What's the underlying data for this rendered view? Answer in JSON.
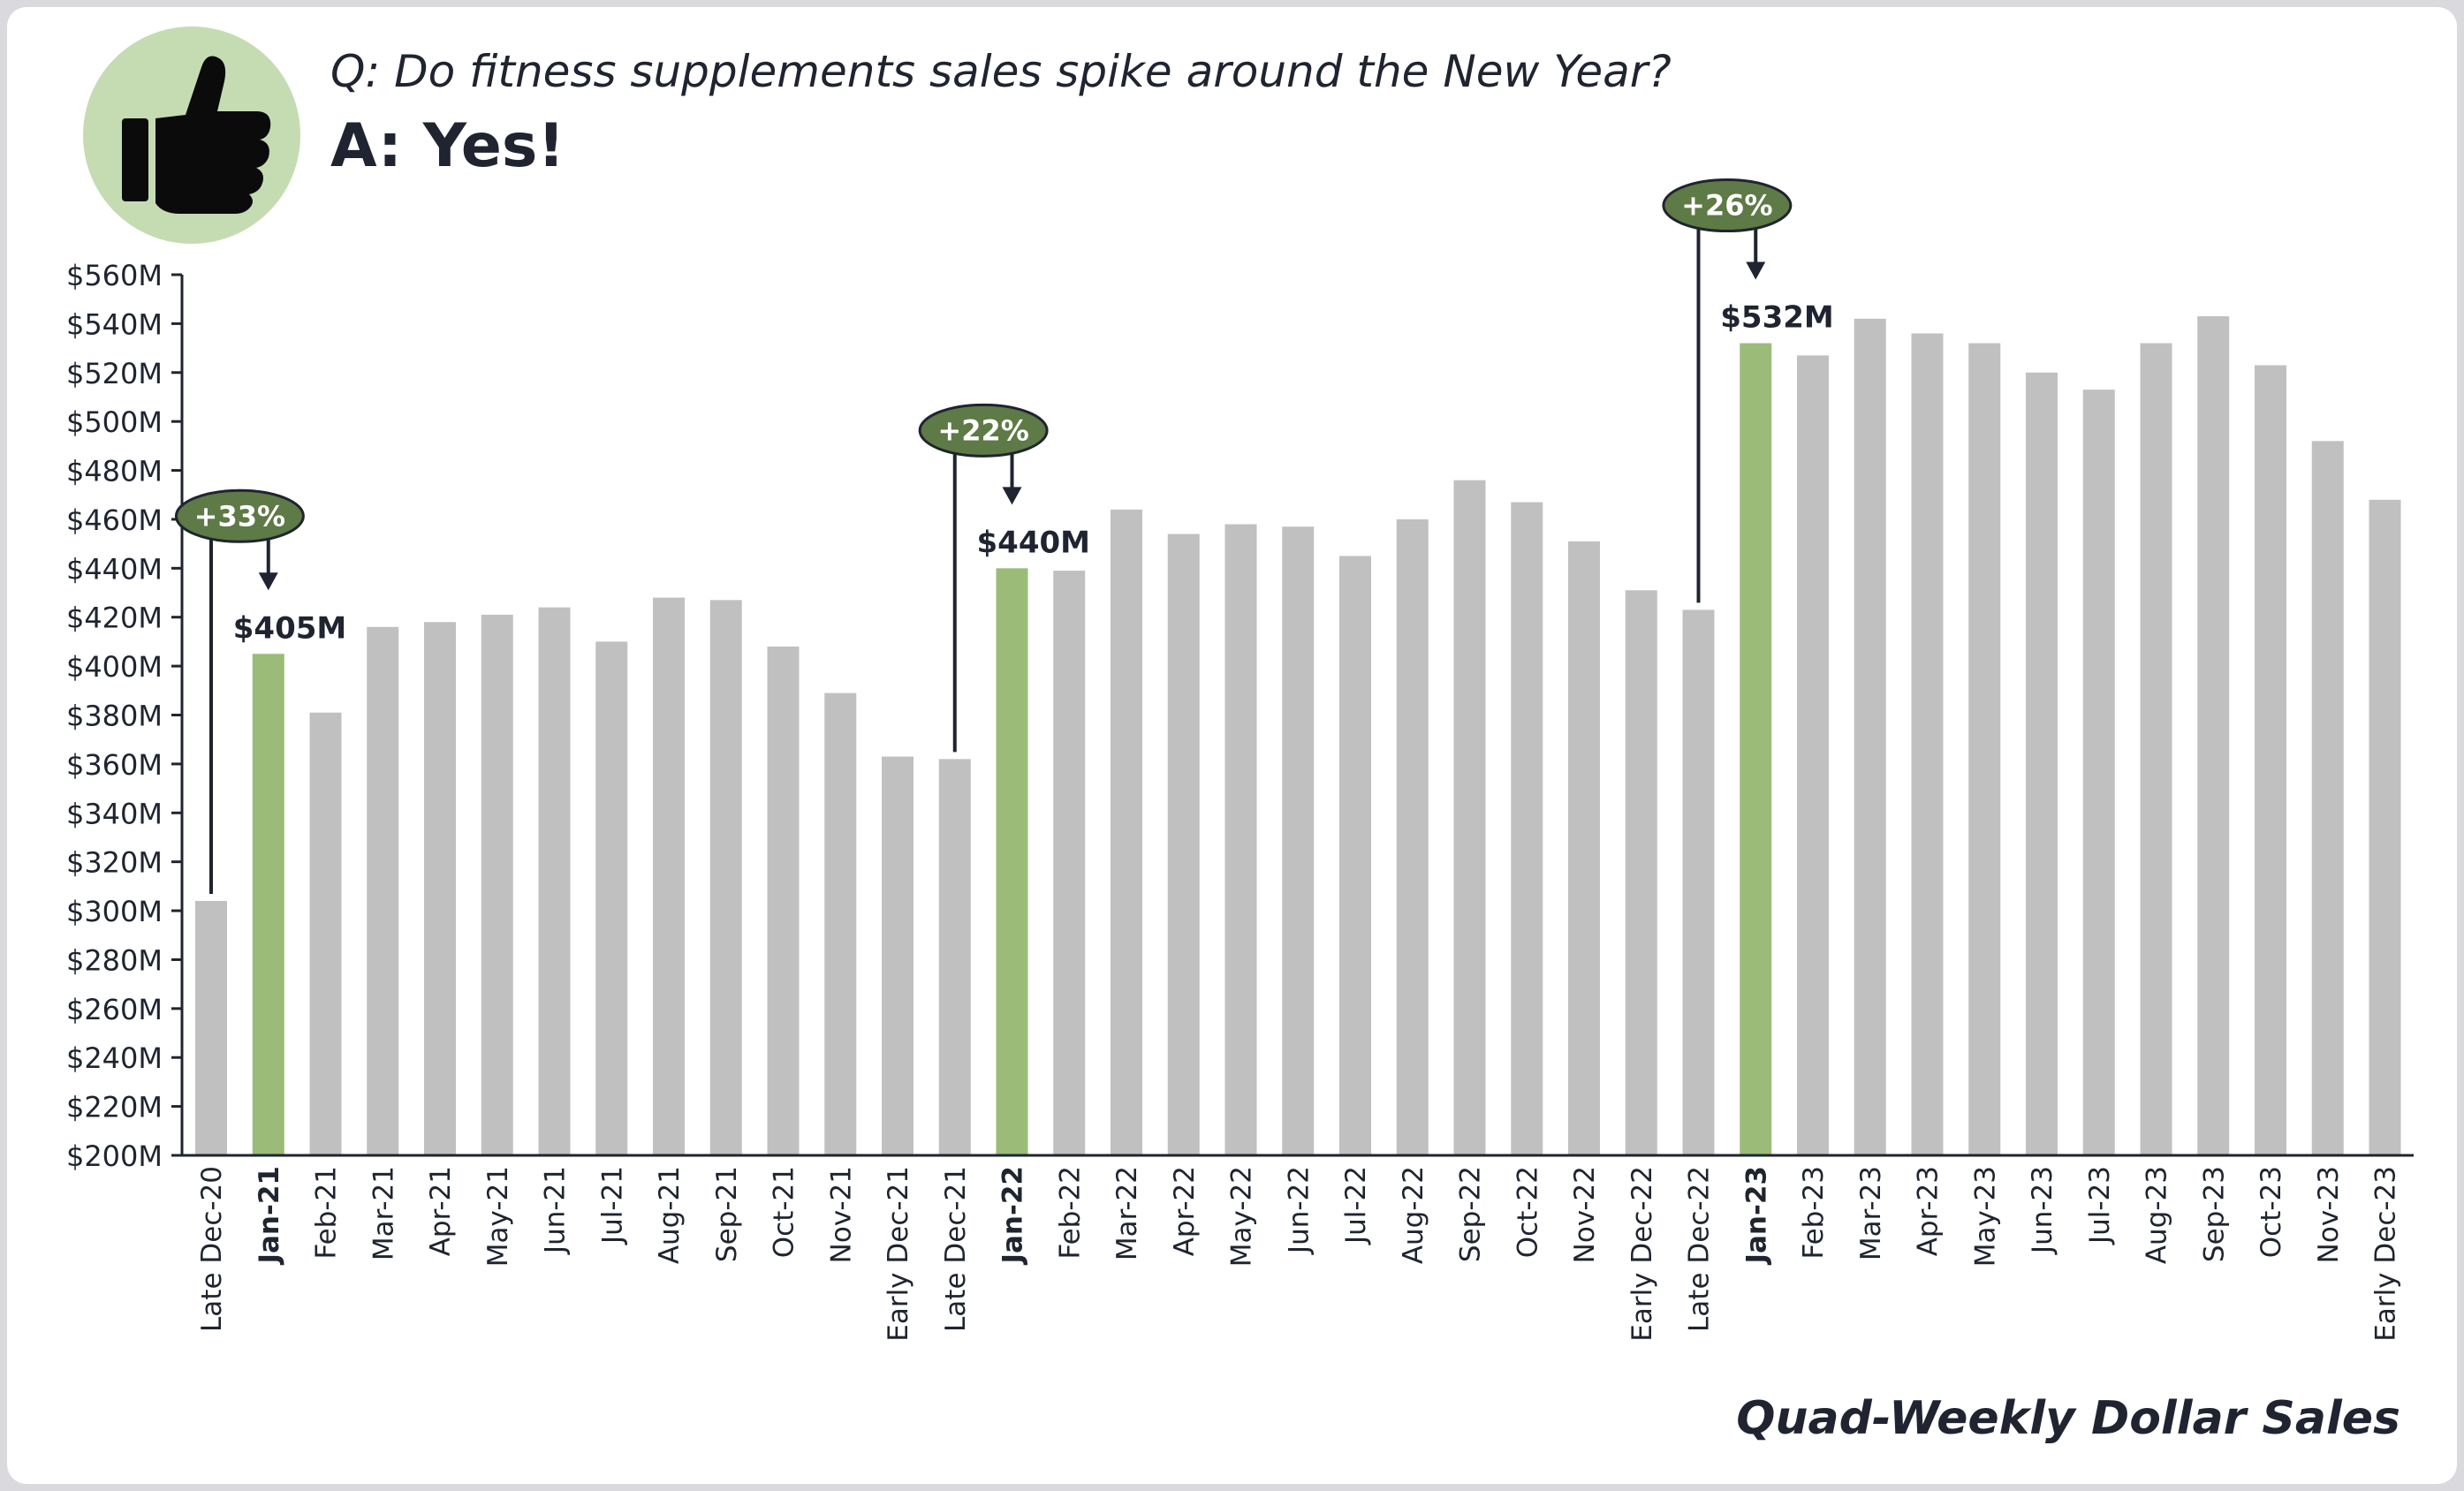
{
  "header": {
    "question": "Q: Do fitness supplements sales spike around the New Year?",
    "answer": "A: Yes!"
  },
  "footer_label": "Quad-Weekly Dollar Sales",
  "icons": {
    "badge": "thumbs-up-icon"
  },
  "colors": {
    "bar": "#c0c0c0",
    "highlight_bar": "#9bbb78",
    "callout_fill": "#5e7a46",
    "badge_bg": "#c5dcb3",
    "text": "#1f2430"
  },
  "chart_data": {
    "type": "bar",
    "title": "",
    "xlabel": "",
    "ylabel": "",
    "ylim": [
      200,
      560
    ],
    "y_ticks": [
      200,
      220,
      240,
      260,
      280,
      300,
      320,
      340,
      360,
      380,
      400,
      420,
      440,
      460,
      480,
      500,
      520,
      540,
      560
    ],
    "y_tick_labels": [
      "$200M",
      "$220M",
      "$240M",
      "$260M",
      "$280M",
      "$300M",
      "$320M",
      "$340M",
      "$360M",
      "$380M",
      "$400M",
      "$420M",
      "$440M",
      "$460M",
      "$480M",
      "$500M",
      "$520M",
      "$540M",
      "$560M"
    ],
    "categories": [
      "Late Dec-20",
      "Jan-21",
      "Feb-21",
      "Mar-21",
      "Apr-21",
      "May-21",
      "Jun-21",
      "Jul-21",
      "Aug-21",
      "Sep-21",
      "Oct-21",
      "Nov-21",
      "Early Dec-21",
      "Late Dec-21",
      "Jan-22",
      "Feb-22",
      "Mar-22",
      "Apr-22",
      "May-22",
      "Jun-22",
      "Jul-22",
      "Aug-22",
      "Sep-22",
      "Oct-22",
      "Nov-22",
      "Early Dec-22",
      "Late Dec-22",
      "Jan-23",
      "Feb-23",
      "Mar-23",
      "Apr-23",
      "May-23",
      "Jun-23",
      "Jul-23",
      "Aug-23",
      "Sep-23",
      "Oct-23",
      "Nov-23",
      "Early Dec-23"
    ],
    "values": [
      304,
      405,
      381,
      416,
      418,
      421,
      424,
      410,
      428,
      427,
      408,
      389,
      363,
      362,
      440,
      439,
      464,
      454,
      458,
      457,
      445,
      460,
      476,
      467,
      451,
      431,
      423,
      532,
      527,
      542,
      536,
      532,
      520,
      513,
      532,
      543,
      523,
      492,
      468
    ],
    "highlight": [
      "Jan-21",
      "Jan-22",
      "Jan-23"
    ],
    "annotations": [
      {
        "from": "Late Dec-20",
        "to": "Jan-21",
        "change": "+33%",
        "value_label": "$405M"
      },
      {
        "from": "Late Dec-21",
        "to": "Jan-22",
        "change": "+22%",
        "value_label": "$440M"
      },
      {
        "from": "Late Dec-22",
        "to": "Jan-23",
        "change": "+26%",
        "value_label": "$532M"
      }
    ],
    "grid": false,
    "legend": "none"
  }
}
